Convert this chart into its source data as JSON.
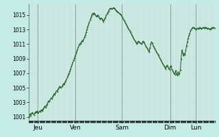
{
  "bg_color": "#c5ece4",
  "plot_bg_color": "#d5ede8",
  "line_color": "#1a5c1a",
  "marker_color": "#1a5c1a",
  "grid_color_minor": "#b8ddd8",
  "grid_color_major": "#a0ccc4",
  "vline_color": "#7a9a94",
  "ylim": [
    1000.5,
    1016.5
  ],
  "yticks": [
    1001,
    1003,
    1005,
    1007,
    1009,
    1011,
    1013,
    1015
  ],
  "ytick_fontsize": 5.5,
  "xtick_fontsize": 6.5,
  "day_labels": [
    "Jeu",
    "Ven",
    "Sam",
    "Dim",
    "Lun"
  ],
  "day_positions": [
    12,
    60,
    120,
    182,
    215
  ],
  "vline_positions": [
    12,
    60,
    120,
    182,
    215
  ],
  "total_points": 240,
  "y_values": [
    1001.0,
    1001.1,
    1001.4,
    1001.2,
    1001.5,
    1001.6,
    1001.4,
    1001.3,
    1001.5,
    1001.7,
    1001.6,
    1001.8,
    1001.5,
    1001.6,
    1001.8,
    1001.7,
    1001.9,
    1002.0,
    1001.8,
    1002.1,
    1002.3,
    1002.5,
    1002.3,
    1002.6,
    1002.8,
    1003.0,
    1003.2,
    1003.1,
    1003.4,
    1003.6,
    1003.5,
    1003.8,
    1004.0,
    1004.2,
    1004.1,
    1004.4,
    1004.6,
    1004.5,
    1004.8,
    1005.0,
    1005.2,
    1005.1,
    1005.0,
    1005.2,
    1005.4,
    1005.6,
    1005.5,
    1005.8,
    1006.0,
    1006.2,
    1006.5,
    1006.8,
    1007.0,
    1007.3,
    1007.6,
    1007.9,
    1008.2,
    1008.5,
    1008.8,
    1009.1,
    1009.4,
    1009.7,
    1010.0,
    1010.3,
    1010.6,
    1010.9,
    1011.1,
    1011.0,
    1011.3,
    1011.5,
    1011.4,
    1011.7,
    1012.0,
    1012.3,
    1012.6,
    1013.0,
    1013.4,
    1013.7,
    1014.0,
    1014.3,
    1014.6,
    1014.9,
    1015.2,
    1015.1,
    1015.3,
    1015.2,
    1015.0,
    1014.8,
    1014.9,
    1015.0,
    1014.8,
    1014.6,
    1014.4,
    1014.6,
    1014.5,
    1014.3,
    1014.1,
    1014.3,
    1014.5,
    1014.7,
    1015.0,
    1015.2,
    1015.4,
    1015.6,
    1015.8,
    1015.9,
    1015.9,
    1015.8,
    1015.9,
    1016.0,
    1015.9,
    1015.8,
    1015.7,
    1015.6,
    1015.5,
    1015.4,
    1015.3,
    1015.2,
    1015.1,
    1015.0,
    1014.8,
    1014.6,
    1014.4,
    1014.2,
    1014.0,
    1013.8,
    1013.6,
    1013.4,
    1013.2,
    1013.0,
    1012.8,
    1012.6,
    1012.4,
    1012.2,
    1012.0,
    1011.8,
    1011.6,
    1011.4,
    1011.2,
    1011.0,
    1011.2,
    1011.4,
    1011.3,
    1011.2,
    1011.1,
    1011.0,
    1011.2,
    1011.4,
    1011.3,
    1011.1,
    1010.9,
    1010.7,
    1010.5,
    1010.3,
    1010.1,
    1009.9,
    1010.5,
    1011.0,
    1011.3,
    1011.1,
    1010.8,
    1010.6,
    1010.4,
    1010.2,
    1010.0,
    1009.8,
    1009.6,
    1009.4,
    1009.2,
    1009.0,
    1008.8,
    1008.6,
    1008.4,
    1008.2,
    1008.0,
    1007.8,
    1007.6,
    1007.9,
    1008.1,
    1007.9,
    1007.7,
    1007.5,
    1007.9,
    1008.0,
    1007.6,
    1007.4,
    1007.2,
    1007.0,
    1006.8,
    1007.4,
    1006.9,
    1006.7,
    1007.2,
    1006.8,
    1007.0,
    1007.5,
    1009.0,
    1010.2,
    1009.8,
    1009.4,
    1009.7,
    1009.5,
    1010.2,
    1010.8,
    1011.3,
    1011.8,
    1012.2,
    1012.5,
    1012.8,
    1013.0,
    1013.2,
    1013.3,
    1013.3,
    1013.2,
    1013.1,
    1013.0,
    1013.1,
    1013.2,
    1013.1,
    1013.2,
    1013.3,
    1013.2,
    1013.1,
    1013.2,
    1013.3,
    1013.2,
    1013.3,
    1013.2,
    1013.3,
    1013.2,
    1013.1,
    1013.2,
    1013.1,
    1013.0,
    1013.1,
    1013.2,
    1013.3,
    1013.2,
    1013.3,
    1013.2
  ]
}
